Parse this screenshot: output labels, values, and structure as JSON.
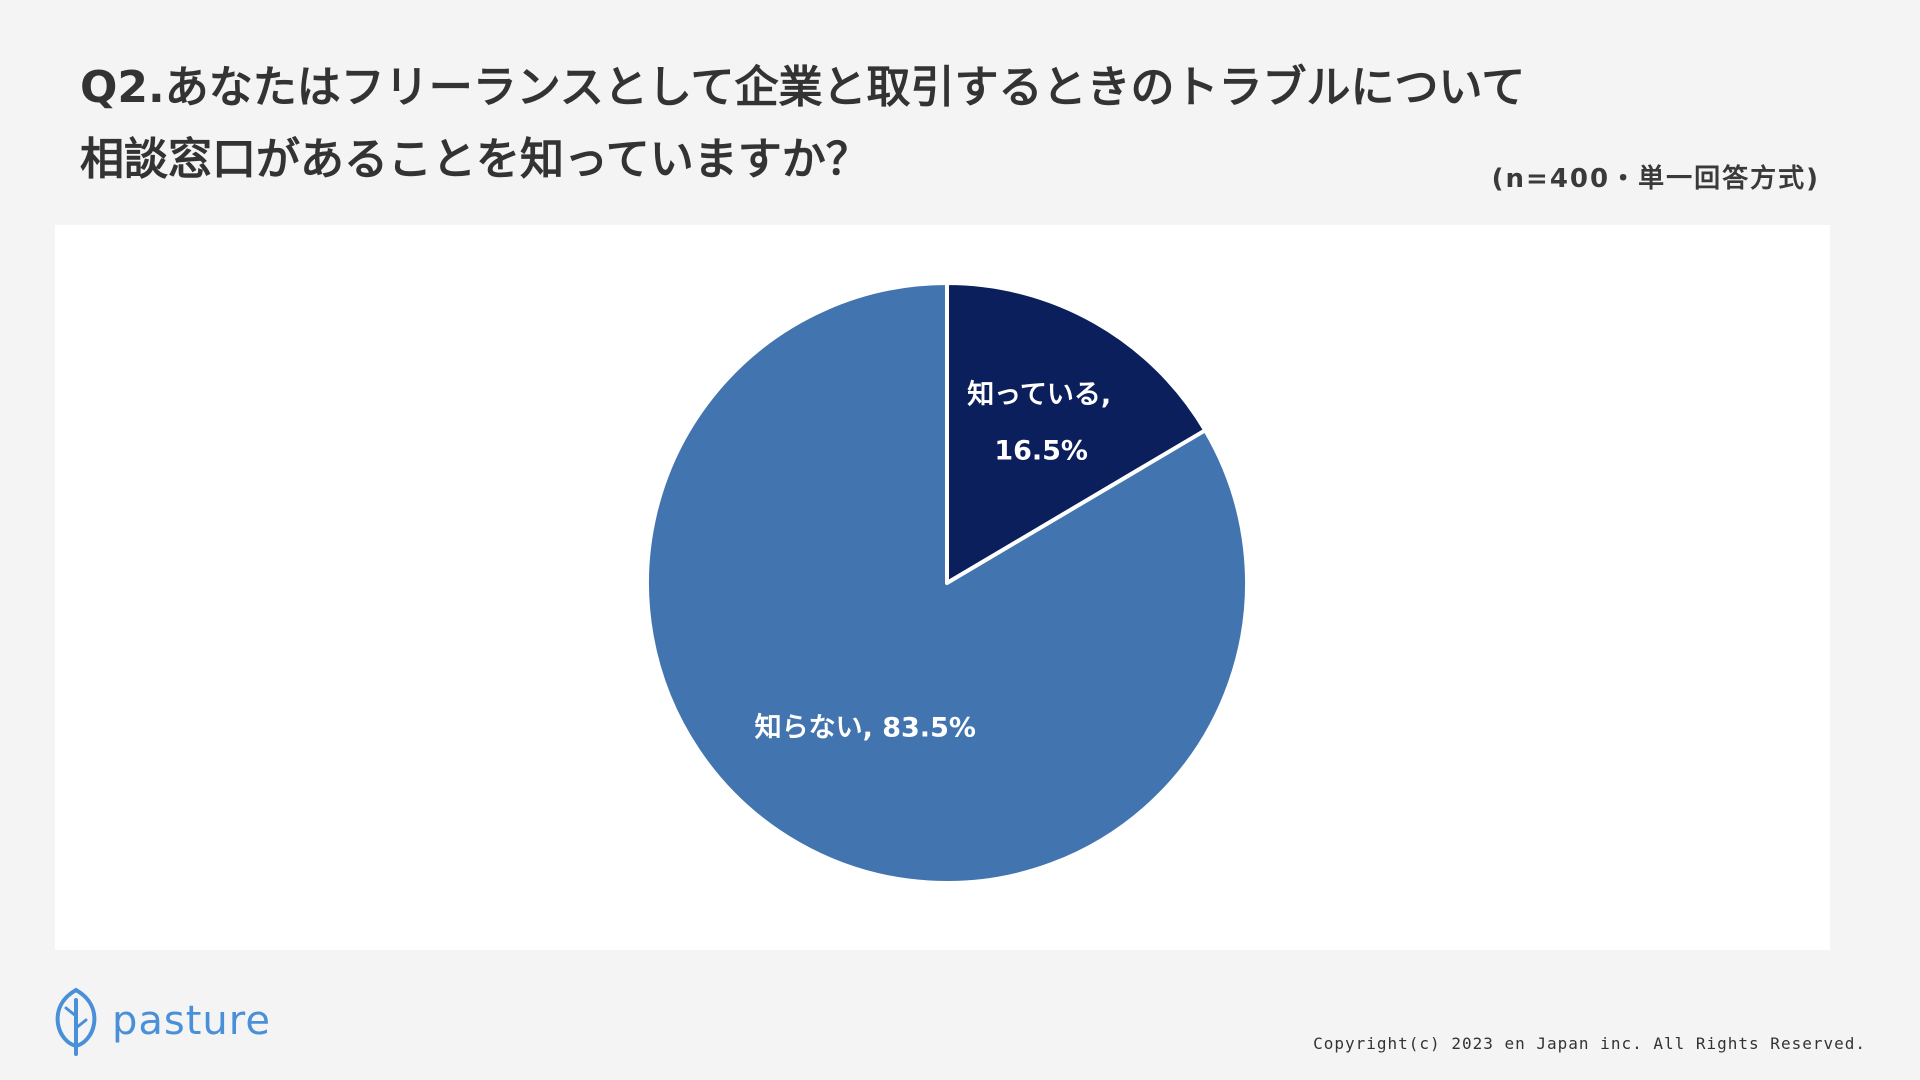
{
  "header": {
    "title_line1": "Q2.あなたはフリーランスとして企業と取引するときのトラブルについて",
    "title_line2": "相談窓口があることを知っていますか？",
    "subtitle": "(n=400・単一回答方式)"
  },
  "chart_data": {
    "type": "pie",
    "start_angle_deg": 0,
    "direction": "clockwise",
    "slices": [
      {
        "label": "知っている",
        "value": 16.5,
        "display_line1": "知っている,",
        "display_line2": "16.5%",
        "color": "#0b1f5c"
      },
      {
        "label": "知らない",
        "value": 83.5,
        "display_line1": "知らない, 83.5%",
        "display_line2": "",
        "color": "#4274b0"
      }
    ]
  },
  "footer": {
    "logo_text": "pasture",
    "copyright": "Copyright(c) 2023 en Japan inc. All Rights Reserved."
  },
  "colors": {
    "background": "#f4f4f4",
    "panel": "#ffffff",
    "brand": "#4a90d9"
  }
}
